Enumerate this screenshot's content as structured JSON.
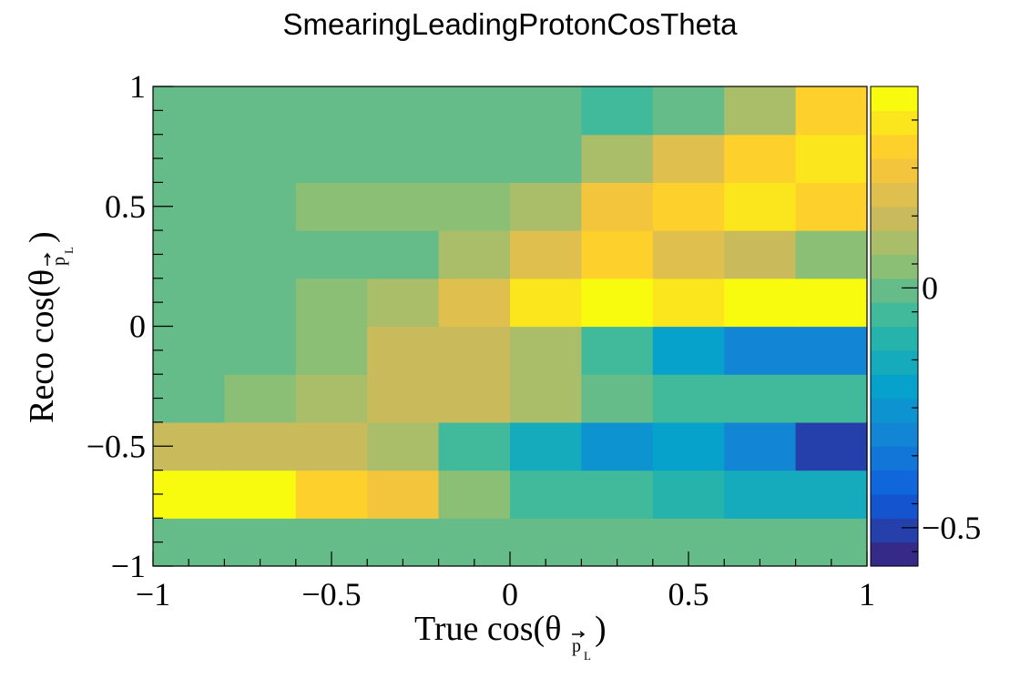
{
  "chart_data": {
    "type": "heatmap",
    "title": "SmearingLeadingProtonCosTheta",
    "xlabel": "True cos(θ",
    "ylabel": "Reco cos(θ",
    "label_subscript": "p",
    "label_subsubscript": "L",
    "label_close": ")",
    "xlim": [
      -1,
      1
    ],
    "ylim": [
      -1,
      1
    ],
    "x_edges": [
      -1,
      -0.8,
      -0.6,
      -0.4,
      -0.2,
      0,
      0.2,
      0.4,
      0.6,
      0.8,
      1
    ],
    "y_edges": [
      -1,
      -0.8,
      -0.6,
      -0.4,
      -0.2,
      0,
      0.2,
      0.4,
      0.6,
      0.8,
      1
    ],
    "x_ticks": [
      -1,
      -0.5,
      0,
      0.5,
      1
    ],
    "x_tick_labels": [
      "−1",
      "−0.5",
      "0",
      "0.5",
      "1"
    ],
    "y_ticks": [
      -1,
      -0.5,
      0,
      0.5,
      1
    ],
    "y_tick_labels": [
      "−1",
      "−0.5",
      "0",
      "0.5",
      "1"
    ],
    "z_range": [
      -0.58,
      0.42
    ],
    "z_ticks": [
      0,
      -0.5
    ],
    "z_tick_labels": [
      "0",
      "−0.5"
    ],
    "z_levels": 20,
    "colormap": [
      "#352a87",
      "#0f5cdd",
      "#1481d6",
      "#06a4ca",
      "#2eb7a4",
      "#87bf77",
      "#d1bb59",
      "#fec832",
      "#f9fb0e"
    ],
    "values": [
      [
        0,
        0,
        0,
        0,
        0,
        0,
        0,
        0,
        0,
        0
      ],
      [
        0.4,
        0.4,
        0.3,
        0.25,
        0.05,
        -0.03,
        -0.07,
        -0.13,
        -0.16,
        -0.16
      ],
      [
        0.14,
        0.14,
        0.14,
        0.08,
        -0.03,
        -0.17,
        -0.25,
        -0.22,
        -0.31,
        -0.52
      ],
      [
        0.0,
        0.05,
        0.08,
        0.12,
        0.12,
        0.08,
        0.0,
        -0.03,
        -0.03,
        -0.06
      ],
      [
        0.0,
        0.0,
        0.05,
        0.12,
        0.12,
        0.08,
        -0.06,
        -0.2,
        -0.28,
        -0.28
      ],
      [
        0.0,
        0.0,
        0.05,
        0.08,
        0.22,
        0.34,
        0.37,
        0.32,
        0.37,
        0.42
      ],
      [
        0.0,
        0.0,
        0.0,
        0.0,
        0.08,
        0.22,
        0.29,
        0.22,
        0.13,
        0.04
      ],
      [
        0.0,
        0.0,
        0.04,
        0.04,
        0.04,
        0.08,
        0.24,
        0.29,
        0.33,
        0.29
      ],
      [
        0.0,
        0.0,
        0.0,
        0.0,
        0.0,
        0.0,
        0.1,
        0.2,
        0.29,
        0.33
      ],
      [
        0.0,
        0.0,
        0.0,
        0.0,
        0.0,
        0.0,
        -0.05,
        0.0,
        0.1,
        0.28
      ]
    ]
  }
}
